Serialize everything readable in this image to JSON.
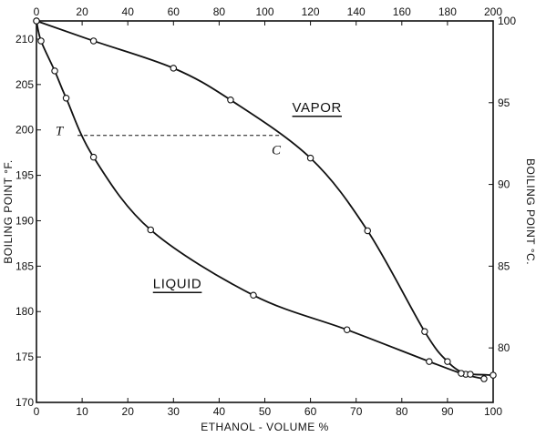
{
  "chart_data": {
    "type": "line",
    "title": "",
    "xlabel": "ETHANOL - VOLUME %",
    "x2label": "",
    "ylabel": "BOILING POINT °F.",
    "y2label": "BOILING POINT °C.",
    "xlim": [
      0,
      100
    ],
    "x2lim": [
      0,
      200
    ],
    "ylim": [
      170,
      212
    ],
    "y2lim_celsius": [
      76.67,
      100
    ],
    "x_ticks": [
      0,
      10,
      20,
      30,
      40,
      50,
      60,
      70,
      80,
      90,
      100
    ],
    "x2_ticks": [
      0,
      20,
      40,
      60,
      80,
      100,
      120,
      140,
      160,
      180,
      200
    ],
    "y_ticks": [
      170,
      175,
      180,
      185,
      190,
      195,
      200,
      205,
      210
    ],
    "y2_ticks": [
      80,
      85,
      90,
      95,
      100
    ],
    "grid": false,
    "legend": "none",
    "series": [
      {
        "name": "VAPOR",
        "x": [
          0,
          12.5,
          30,
          42.5,
          60,
          72.5,
          85,
          90,
          94,
          98
        ],
        "y": [
          212,
          209.8,
          206.8,
          203.3,
          196.9,
          188.9,
          177.8,
          174.5,
          173.1,
          172.6
        ],
        "markers": true
      },
      {
        "name": "LIQUID",
        "x": [
          0,
          1,
          4,
          6.5,
          12.5,
          25,
          47.5,
          68,
          86,
          93,
          95,
          100
        ],
        "y": [
          212,
          209.8,
          206.5,
          203.5,
          197,
          189,
          181.8,
          178,
          174.5,
          173.2,
          173.1,
          173
        ]
      }
    ],
    "annotations": [
      {
        "text": "VAPOR",
        "x": 56,
        "y": 202,
        "underline": true
      },
      {
        "text": "LIQUID",
        "x": 25.5,
        "y": 182.6,
        "underline": true
      },
      {
        "text": "T",
        "x": 5,
        "y": 199.4,
        "italic": true
      },
      {
        "text": "C",
        "x": 52.5,
        "y": 197.3,
        "italic": true
      }
    ],
    "tie_line": {
      "x": [
        9,
        53.5
      ],
      "y": [
        199.4,
        199.4
      ],
      "style": "dashed"
    },
    "colors": {
      "ink": "#111111",
      "marker_fill": "#ffffff",
      "background": "#ffffff"
    }
  }
}
